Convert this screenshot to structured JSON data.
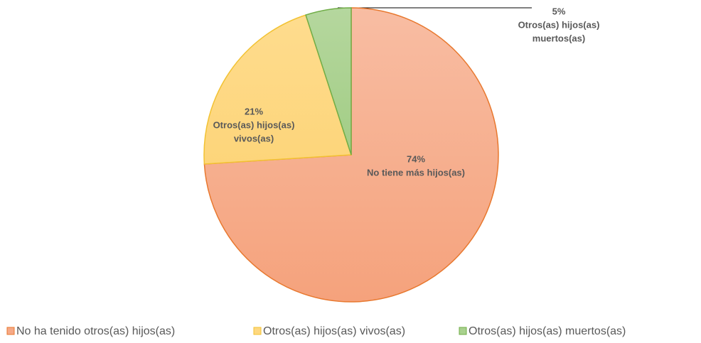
{
  "chart_data": {
    "type": "pie",
    "categories": [
      "No ha tenido otros(as) hijos(as)",
      "Otros(as) hijos(as) vivos(as)",
      "Otros(as) hijos(as) muertos(as)"
    ],
    "values": [
      74,
      21,
      5
    ],
    "value_labels": [
      "74%",
      "21%",
      "5%"
    ],
    "label_texts": [
      [
        "No tiene más hijos(as)"
      ],
      [
        "Otros(as) hijos(as)",
        "vivos(as)"
      ],
      [
        "Otros(as) hijos(as)",
        "muertos(as)"
      ]
    ],
    "colors": [
      "#F6A987",
      "#FED880",
      "#A9D18E"
    ],
    "legend": "bottom"
  }
}
